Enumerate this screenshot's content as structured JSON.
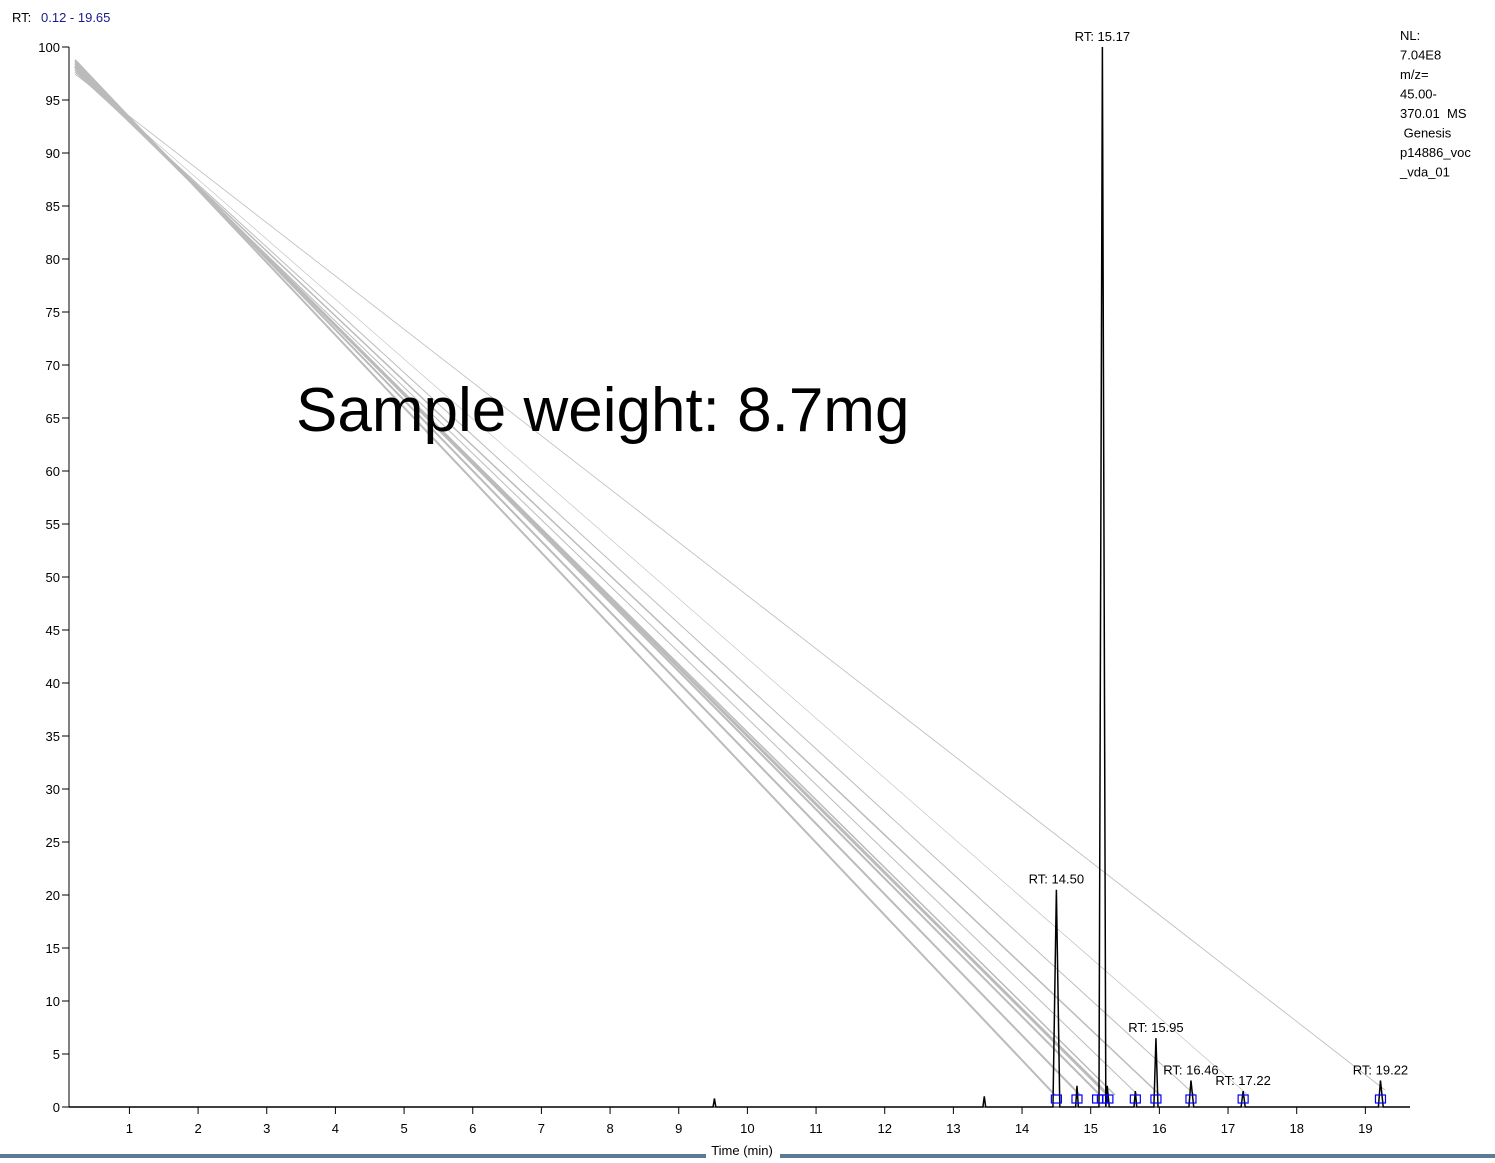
{
  "chart_data": {
    "type": "line",
    "rt_prefix": "RT:",
    "rt_range": "0.12 - 19.65",
    "overlay_text": "Sample weight: 8.7mg",
    "info_lines": [
      "NL:",
      "7.04E8",
      "m/z=",
      "45.00-",
      "370.01  MS",
      " Genesis",
      "p14886_voc",
      "_vda_01"
    ],
    "x_label": "Time (min)",
    "xlim": [
      0.12,
      19.65
    ],
    "ylim": [
      0,
      100
    ],
    "xticks": [
      1,
      2,
      3,
      4,
      5,
      6,
      7,
      8,
      9,
      10,
      11,
      12,
      13,
      14,
      15,
      16,
      17,
      18,
      19
    ],
    "yticks": [
      0,
      5,
      10,
      15,
      20,
      25,
      30,
      35,
      40,
      45,
      50,
      55,
      60,
      65,
      70,
      75,
      80,
      85,
      90,
      95,
      100
    ],
    "series": [
      {
        "color": "#000000",
        "x": [
          0.12,
          9.5,
          9.52,
          9.54,
          13.43,
          13.45,
          13.47,
          14.45,
          14.5,
          14.55,
          14.78,
          14.8,
          14.82,
          15.12,
          15.17,
          15.22,
          15.24,
          15.27,
          15.63,
          15.65,
          15.67,
          15.92,
          15.95,
          15.98,
          16.43,
          16.46,
          16.5,
          17.19,
          17.22,
          17.25,
          19.19,
          19.22,
          19.26,
          19.65
        ],
        "values": [
          0,
          0,
          0.8,
          0,
          0,
          1,
          0,
          0,
          20.5,
          0,
          0,
          2,
          0,
          0,
          100,
          0,
          2,
          0,
          0,
          1.5,
          0,
          0,
          6.5,
          0,
          0,
          2.5,
          0,
          0,
          1.5,
          0,
          0,
          2.5,
          0,
          0
        ]
      }
    ],
    "markers": {
      "color": "#0000ff",
      "x": [
        14.5,
        14.8,
        15.1,
        15.17,
        15.25,
        15.65,
        15.95,
        16.46,
        17.22,
        19.22
      ]
    },
    "peak_labels": [
      {
        "label": "RT: 15.17",
        "x": 15.17,
        "y": 100
      },
      {
        "label": "RT: 14.50",
        "x": 14.5,
        "y": 20.5
      },
      {
        "label": "RT: 15.95",
        "x": 15.95,
        "y": 6.5
      },
      {
        "label": "RT: 16.46",
        "x": 16.46,
        "y": 2.5
      },
      {
        "label": "RT: 17.22",
        "x": 17.22,
        "y": 1.5
      },
      {
        "label": "RT: 19.22",
        "x": 19.22,
        "y": 2.5
      }
    ]
  }
}
